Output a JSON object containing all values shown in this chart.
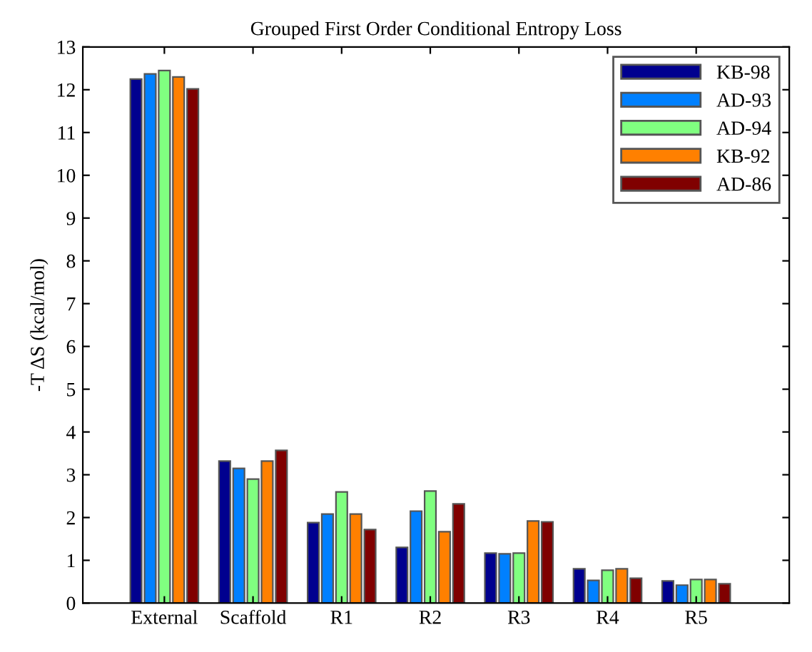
{
  "chart_data": {
    "type": "bar",
    "title": "Grouped First Order Conditional Entropy Loss",
    "ylabel": "-T ΔS (kcal/mol)",
    "categories": [
      "External",
      "Scaffold",
      "R1",
      "R2",
      "R3",
      "R4",
      "R5"
    ],
    "series": [
      {
        "name": "KB-98",
        "color": "#00008f",
        "values": [
          12.25,
          3.32,
          1.88,
          1.3,
          1.17,
          0.8,
          0.52
        ]
      },
      {
        "name": "AD-93",
        "color": "#0080ff",
        "values": [
          12.37,
          3.15,
          2.08,
          2.15,
          1.15,
          0.53,
          0.42
        ]
      },
      {
        "name": "AD-94",
        "color": "#80ff80",
        "values": [
          12.45,
          2.9,
          2.6,
          2.62,
          1.17,
          0.77,
          0.55
        ]
      },
      {
        "name": "KB-92",
        "color": "#ff8000",
        "values": [
          12.3,
          3.32,
          2.08,
          1.67,
          1.92,
          0.8,
          0.55
        ]
      },
      {
        "name": "AD-86",
        "color": "#800000",
        "values": [
          12.02,
          3.57,
          1.72,
          2.32,
          1.9,
          0.58,
          0.45
        ]
      }
    ],
    "ylim": [
      0,
      13
    ],
    "yticks": [
      0,
      1,
      2,
      3,
      4,
      5,
      6,
      7,
      8,
      9,
      10,
      11,
      12,
      13
    ],
    "grid": false,
    "legend": "top right"
  }
}
